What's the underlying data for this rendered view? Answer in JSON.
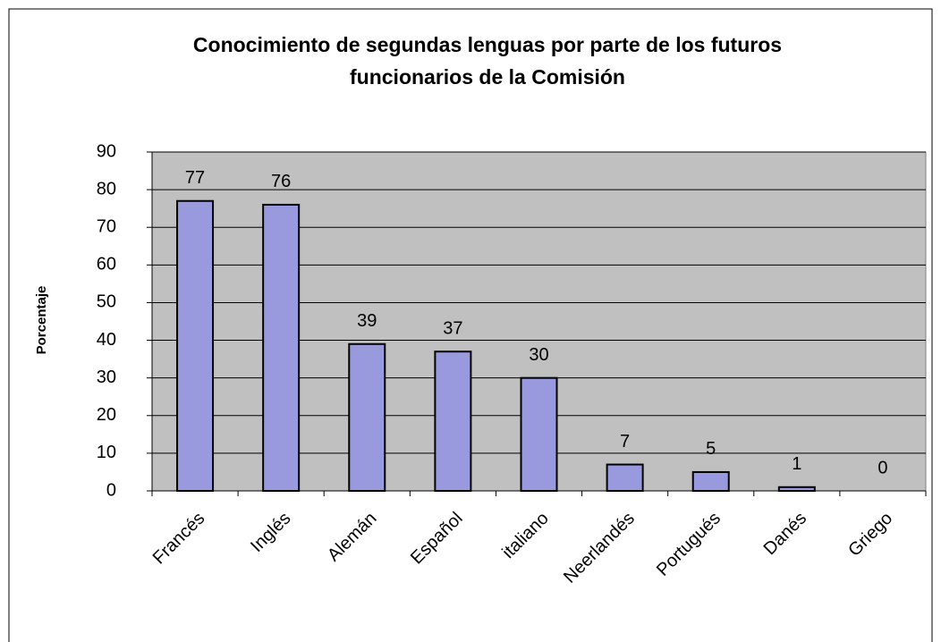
{
  "chart_data": {
    "type": "bar",
    "title": [
      "Conocimiento de segundas lenguas por parte de los futuros",
      "funcionarios de la Comisión"
    ],
    "y_label": "Porcentaje",
    "categories": [
      "Francés",
      "Inglés",
      "Alemán",
      "Español",
      "italiano",
      "Neerlandés",
      "Portugués",
      "Danés",
      "Griego"
    ],
    "values": [
      77,
      76,
      39,
      37,
      30,
      7,
      5,
      1,
      0
    ],
    "color": "#9999dd",
    "ylim": [
      0,
      90
    ],
    "yticks": [
      0,
      10,
      20,
      30,
      40,
      50,
      60,
      70,
      80,
      90
    ],
    "grid": true
  }
}
